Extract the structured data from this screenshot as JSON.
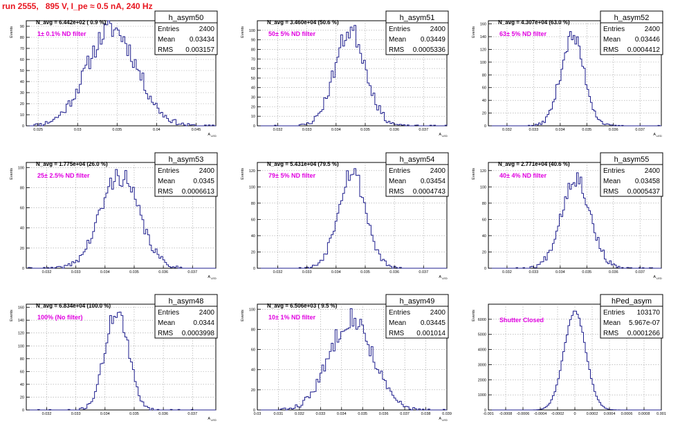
{
  "run_title": "run 2555,   895 V, I_pe ≈ 0.5 nA, 240 Hz",
  "colors": {
    "histogram": "#1c1c8c",
    "title": "#e8141e",
    "filter": "#e000e0",
    "grid": "#a0a0a0"
  },
  "chart_data": [
    {
      "type": "histogram",
      "stats_name": "h_asym50",
      "entries": "2400",
      "mean": "0.03434",
      "rms": "0.003157",
      "navg": "N_avg = 6.442e+02 ( 0.9 %)",
      "filter": "1± 0.1% ND filter",
      "ylabel": "Events",
      "xlabel": "A",
      "xlabel_sub": "LED",
      "xlim": [
        0.0235,
        0.0475
      ],
      "ylim": [
        0,
        95
      ],
      "xticks": [
        0.025,
        0.03,
        0.035,
        0.04,
        0.045
      ],
      "xtick_labels": [
        "0.025",
        "0.03",
        "0.035",
        "0.04",
        "0.045"
      ],
      "yticks": [
        0,
        10,
        20,
        30,
        40,
        50,
        60,
        70,
        80,
        90
      ],
      "ytick_labels": [
        "0",
        "10",
        "20",
        "30",
        "40",
        "50",
        "60",
        "70",
        "80",
        "90"
      ],
      "grid": true,
      "mu": 0.03434,
      "sigma": 0.003157,
      "peak": 88,
      "nbins": 100,
      "seed": 11
    },
    {
      "type": "histogram",
      "stats_name": "h_asym51",
      "entries": "2400",
      "mean": "0.03449",
      "rms": "0.0005336",
      "navg": "N_avg = 3.460e+04 (50.6 %)",
      "filter": "50± 5% ND filter",
      "ylabel": "Events",
      "xlabel": "A",
      "xlabel_sub": "LED",
      "xlim": [
        0.0313,
        0.0378
      ],
      "ylim": [
        0,
        110
      ],
      "xticks": [
        0.032,
        0.033,
        0.034,
        0.035,
        0.036,
        0.037
      ],
      "xtick_labels": [
        "0.032",
        "0.033",
        "0.034",
        "0.035",
        "0.036",
        "0.037"
      ],
      "yticks": [
        0,
        10,
        20,
        30,
        40,
        50,
        60,
        70,
        80,
        90,
        100
      ],
      "ytick_labels": [
        "0",
        "10",
        "20",
        "30",
        "40",
        "50",
        "60",
        "70",
        "80",
        "90",
        "100"
      ],
      "grid": true,
      "mu": 0.03449,
      "sigma": 0.0005336,
      "peak": 100,
      "nbins": 100,
      "seed": 23
    },
    {
      "type": "histogram",
      "stats_name": "h_asym52",
      "entries": "2400",
      "mean": "0.03446",
      "rms": "0.0004412",
      "navg": "N_avg = 4.307e+04 (63.0 %)",
      "filter": "63± 5% ND filter",
      "ylabel": "Events",
      "xlabel": "A",
      "xlabel_sub": "LED",
      "xlim": [
        0.0313,
        0.0378
      ],
      "ylim": [
        0,
        165
      ],
      "xticks": [
        0.032,
        0.033,
        0.034,
        0.035,
        0.036,
        0.037
      ],
      "xtick_labels": [
        "0.032",
        "0.033",
        "0.034",
        "0.035",
        "0.036",
        "0.037"
      ],
      "yticks": [
        0,
        20,
        40,
        60,
        80,
        100,
        120,
        140,
        160
      ],
      "ytick_labels": [
        "0",
        "20",
        "40",
        "60",
        "80",
        "100",
        "120",
        "140",
        "160"
      ],
      "grid": true,
      "mu": 0.03446,
      "sigma": 0.0004412,
      "peak": 140,
      "nbins": 100,
      "seed": 37
    },
    {
      "type": "histogram",
      "stats_name": "h_asym53",
      "entries": "2400",
      "mean": "0.0345",
      "rms": "0.0006613",
      "navg": "N_avg = 1.775e+04 (26.0 %)",
      "filter": "25± 2.5% ND filter",
      "ylabel": "Events",
      "xlabel": "A",
      "xlabel_sub": "LED",
      "xlim": [
        0.0313,
        0.0378
      ],
      "ylim": [
        0,
        105
      ],
      "xticks": [
        0.032,
        0.033,
        0.034,
        0.035,
        0.036,
        0.037
      ],
      "xtick_labels": [
        "0.032",
        "0.033",
        "0.034",
        "0.035",
        "0.036",
        "0.037"
      ],
      "yticks": [
        0,
        20,
        40,
        60,
        80,
        100
      ],
      "ytick_labels": [
        "0",
        "20",
        "40",
        "60",
        "80",
        "100"
      ],
      "grid": true,
      "mu": 0.0345,
      "sigma": 0.0006613,
      "peak": 92,
      "nbins": 100,
      "seed": 41
    },
    {
      "type": "histogram",
      "stats_name": "h_asym54",
      "entries": "2400",
      "mean": "0.03454",
      "rms": "0.0004743",
      "navg": "N_avg = 5.431e+04 (79.5 %)",
      "filter": "79± 5% ND filter",
      "ylabel": "Events",
      "xlabel": "A",
      "xlabel_sub": "LED",
      "xlim": [
        0.0313,
        0.0378
      ],
      "ylim": [
        0,
        130
      ],
      "xticks": [
        0.032,
        0.033,
        0.034,
        0.035,
        0.036,
        0.037
      ],
      "xtick_labels": [
        "0.032",
        "0.033",
        "0.034",
        "0.035",
        "0.036",
        "0.037"
      ],
      "yticks": [
        0,
        20,
        40,
        60,
        80,
        100,
        120
      ],
      "ytick_labels": [
        "0",
        "20",
        "40",
        "60",
        "80",
        "100",
        "120"
      ],
      "grid": true,
      "mu": 0.03454,
      "sigma": 0.0004743,
      "peak": 120,
      "nbins": 100,
      "seed": 53
    },
    {
      "type": "histogram",
      "stats_name": "h_asym55",
      "entries": "2400",
      "mean": "0.03458",
      "rms": "0.0005437",
      "navg": "N_avg = 2.771e+04 (40.6 %)",
      "filter": "40± 4% ND filter",
      "ylabel": "Events",
      "xlabel": "A",
      "xlabel_sub": "LED",
      "xlim": [
        0.0313,
        0.0378
      ],
      "ylim": [
        0,
        130
      ],
      "xticks": [
        0.032,
        0.033,
        0.034,
        0.035,
        0.036,
        0.037
      ],
      "xtick_labels": [
        "0.032",
        "0.033",
        "0.034",
        "0.035",
        "0.036",
        "0.037"
      ],
      "yticks": [
        0,
        20,
        40,
        60,
        80,
        100,
        120
      ],
      "ytick_labels": [
        "0",
        "20",
        "40",
        "60",
        "80",
        "100",
        "120"
      ],
      "grid": true,
      "mu": 0.03458,
      "sigma": 0.0005437,
      "peak": 112,
      "nbins": 100,
      "seed": 67
    },
    {
      "type": "histogram",
      "stats_name": "h_asym48",
      "entries": "2400",
      "mean": "0.0344",
      "rms": "0.0003998",
      "navg": "N_avg = 6.834e+04 (100.0 %)",
      "filter": "100% (No filter)",
      "ylabel": "Events",
      "xlabel": "A",
      "xlabel_sub": "LED",
      "xlim": [
        0.0313,
        0.0378
      ],
      "ylim": [
        0,
        165
      ],
      "xticks": [
        0.032,
        0.033,
        0.034,
        0.035,
        0.036,
        0.037
      ],
      "xtick_labels": [
        "0.032",
        "0.033",
        "0.034",
        "0.035",
        "0.036",
        "0.037"
      ],
      "yticks": [
        0,
        20,
        40,
        60,
        80,
        100,
        120,
        140,
        160
      ],
      "ytick_labels": [
        "0",
        "20",
        "40",
        "60",
        "80",
        "100",
        "120",
        "140",
        "160"
      ],
      "grid": true,
      "mu": 0.0344,
      "sigma": 0.0003998,
      "peak": 155,
      "nbins": 100,
      "seed": 71
    },
    {
      "type": "histogram",
      "stats_name": "h_asym49",
      "entries": "2400",
      "mean": "0.03445",
      "rms": "0.001014",
      "navg": "N_avg = 6.506e+03 ( 9.5 %)",
      "filter": "10± 1% ND filter",
      "ylabel": "Events",
      "xlabel": "A",
      "xlabel_sub": "LED",
      "xlim": [
        0.03,
        0.039
      ],
      "ylim": [
        0,
        105
      ],
      "xticks": [
        0.03,
        0.031,
        0.032,
        0.033,
        0.034,
        0.035,
        0.036,
        0.037,
        0.038,
        0.039
      ],
      "xtick_labels": [
        "0.03",
        "0.031",
        "0.032",
        "0.033",
        "0.034",
        "0.035",
        "0.036",
        "0.037",
        "0.038",
        "0.039"
      ],
      "yticks": [
        0,
        20,
        40,
        60,
        80,
        100
      ],
      "ytick_labels": [
        "0",
        "20",
        "40",
        "60",
        "80",
        "100"
      ],
      "grid": true,
      "mu": 0.03445,
      "sigma": 0.001014,
      "peak": 92,
      "nbins": 100,
      "seed": 83
    },
    {
      "type": "histogram",
      "stats_name": "hPed_asym",
      "entries": "103170",
      "mean": "5.967e-07",
      "rms": "0.0001266",
      "navg": "",
      "filter": "Shutter Closed",
      "ylabel": "Events",
      "xlabel": "",
      "xlabel_sub": "",
      "xlim": [
        -0.001,
        0.001
      ],
      "ylim": [
        0,
        7000
      ],
      "xticks": [
        -0.001,
        -0.0008,
        -0.0006,
        -0.0004,
        -0.0002,
        0,
        0.0002,
        0.0004,
        0.0006,
        0.0008,
        0.001
      ],
      "xtick_labels": [
        "-0.001",
        "-0.0008",
        "-0.0006",
        "-0.0004",
        "-0.0002",
        "0",
        "0.0002",
        "0.0004",
        "0.0006",
        "0.0008",
        "0.001"
      ],
      "yticks": [
        0,
        1000,
        2000,
        3000,
        4000,
        5000,
        6000
      ],
      "ytick_labels": [
        "0",
        "1000",
        "2000",
        "3000",
        "4000",
        "5000",
        "6000"
      ],
      "grid": true,
      "mu": 6e-07,
      "sigma": 0.0001266,
      "peak": 6500,
      "nbins": 100,
      "seed": 97
    }
  ]
}
